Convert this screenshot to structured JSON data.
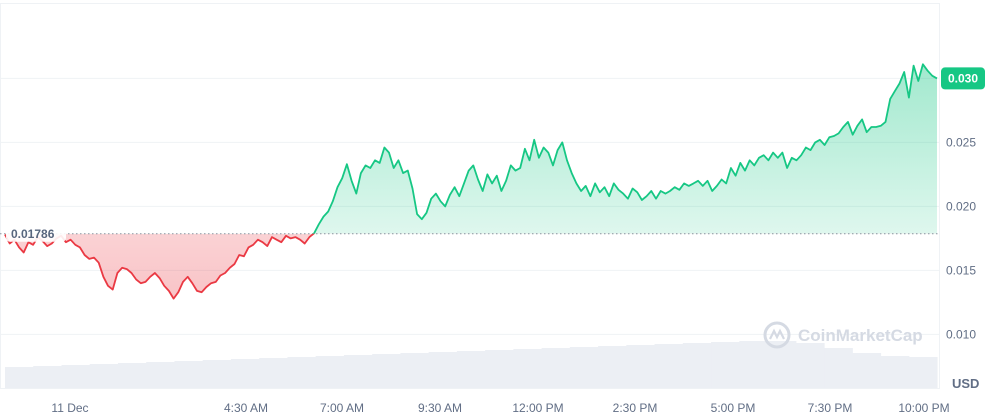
{
  "chart_data": {
    "type": "line",
    "x_tick_labels": [
      "11 Dec",
      "4:30 AM",
      "7:00 AM",
      "9:30 AM",
      "12:00 PM",
      "2:30 PM",
      "5:00 PM",
      "7:30 PM",
      "10:00 PM"
    ],
    "y_ticks": [
      0.01,
      0.015,
      0.02,
      0.025,
      0.03
    ],
    "y_tick_labels": [
      "0.010",
      "0.015",
      "0.020",
      "0.025"
    ],
    "ylim": [
      0.0055,
      0.0355
    ],
    "unit": "USD",
    "baseline": {
      "value": 0.01786,
      "label": "0.01786"
    },
    "last_price": {
      "value": 0.03,
      "label": "0.030"
    },
    "series": [
      {
        "values": [
          0.0178,
          0.0171,
          0.0174,
          0.0168,
          0.0164,
          0.0172,
          0.017,
          0.0176,
          0.0173,
          0.0169,
          0.0171,
          0.0175,
          0.0177,
          0.0172,
          0.0174,
          0.017,
          0.0168,
          0.0162,
          0.0159,
          0.016,
          0.0156,
          0.0145,
          0.0138,
          0.0135,
          0.0148,
          0.0152,
          0.0151,
          0.0148,
          0.0143,
          0.014,
          0.0141,
          0.0145,
          0.0148,
          0.0144,
          0.0138,
          0.0134,
          0.0128,
          0.0133,
          0.0141,
          0.0145,
          0.014,
          0.0134,
          0.0133,
          0.0137,
          0.014,
          0.0141,
          0.0146,
          0.0148,
          0.0152,
          0.0155,
          0.0162,
          0.0161,
          0.0168,
          0.017,
          0.0174,
          0.0172,
          0.0169,
          0.0176,
          0.0174,
          0.0172,
          0.0177,
          0.0175,
          0.0176,
          0.0174,
          0.0171,
          0.0176,
          0.0179,
          0.0186,
          0.0192,
          0.0196,
          0.0204,
          0.0215,
          0.0222,
          0.0233,
          0.022,
          0.021,
          0.0226,
          0.0232,
          0.023,
          0.0236,
          0.0234,
          0.0246,
          0.0242,
          0.023,
          0.0236,
          0.0226,
          0.0228,
          0.0214,
          0.0194,
          0.019,
          0.0195,
          0.0206,
          0.021,
          0.0204,
          0.02,
          0.0209,
          0.0215,
          0.0208,
          0.0218,
          0.0228,
          0.0232,
          0.0221,
          0.0212,
          0.0225,
          0.0218,
          0.0224,
          0.0212,
          0.022,
          0.0232,
          0.0228,
          0.023,
          0.0245,
          0.0236,
          0.0252,
          0.0238,
          0.0246,
          0.0242,
          0.0232,
          0.0244,
          0.025,
          0.0236,
          0.0226,
          0.0218,
          0.0212,
          0.0216,
          0.0208,
          0.0218,
          0.0211,
          0.0215,
          0.0208,
          0.0218,
          0.0213,
          0.021,
          0.0206,
          0.0214,
          0.0211,
          0.0205,
          0.0208,
          0.0212,
          0.0206,
          0.0212,
          0.021,
          0.0212,
          0.0215,
          0.0213,
          0.0218,
          0.0216,
          0.0218,
          0.022,
          0.0216,
          0.022,
          0.0212,
          0.0216,
          0.0221,
          0.0218,
          0.023,
          0.0224,
          0.0234,
          0.0228,
          0.0236,
          0.0232,
          0.0238,
          0.024,
          0.0236,
          0.0242,
          0.0238,
          0.0242,
          0.023,
          0.0238,
          0.0236,
          0.024,
          0.0246,
          0.0244,
          0.025,
          0.0252,
          0.0248,
          0.0254,
          0.0255,
          0.0257,
          0.0262,
          0.0266,
          0.0256,
          0.0263,
          0.0268,
          0.0258,
          0.0262,
          0.0262,
          0.0263,
          0.0266,
          0.0284,
          0.029,
          0.0296,
          0.0305,
          0.0285,
          0.031,
          0.0298,
          0.0311,
          0.0306,
          0.0302,
          0.03
        ]
      }
    ],
    "volume": {
      "values": [
        0.021,
        0.022,
        0.023,
        0.024,
        0.025,
        0.026,
        0.027,
        0.028,
        0.029,
        0.03,
        0.031,
        0.032,
        0.033,
        0.034,
        0.035,
        0.036,
        0.037,
        0.038,
        0.039,
        0.04,
        0.041,
        0.042,
        0.043,
        0.044,
        0.045,
        0.046,
        0.047,
        0.047,
        0.045,
        0.04,
        0.035,
        0.032,
        0.031
      ]
    },
    "up_color": "#16c784",
    "down_color": "#ea3943",
    "grid": true,
    "legend": "none"
  },
  "watermark": {
    "text": "CoinMarketCap",
    "icon": "coinmarketcap-logo-icon"
  }
}
